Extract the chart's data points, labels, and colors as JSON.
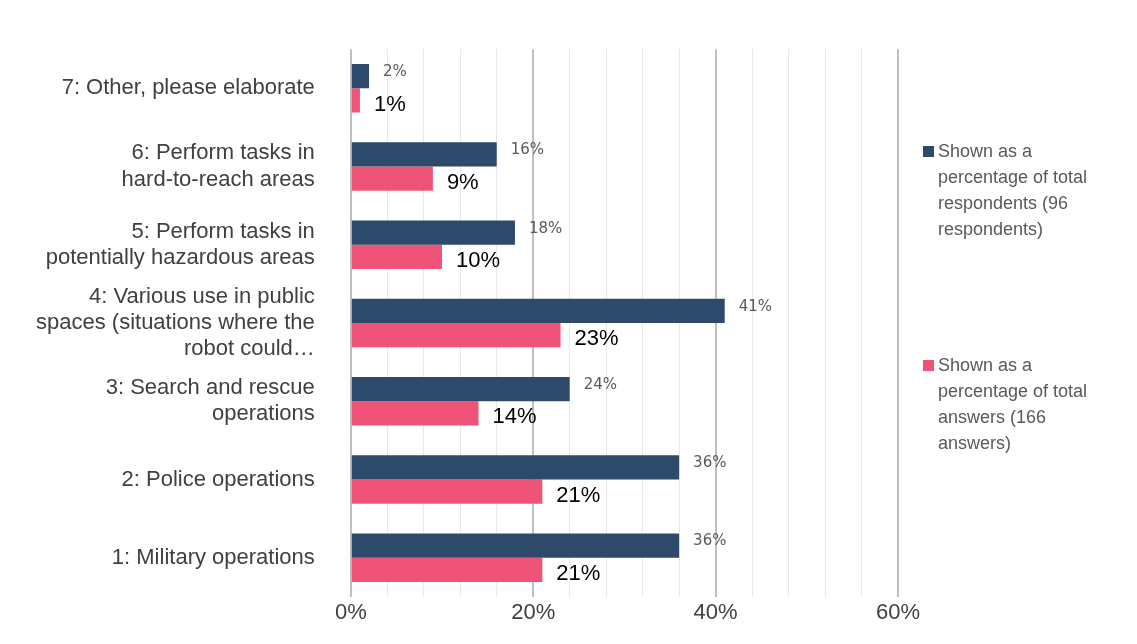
{
  "chart_data": {
    "type": "bar",
    "orientation": "horizontal",
    "categories": [
      "7: Other, please elaborate",
      "6: Perform tasks in hard-to-reach areas",
      "5: Perform tasks in potentially hazardous areas",
      "4: Various use in public spaces (situations where the robot could…",
      "3: Search and rescue operations",
      "2: Police operations",
      "1: Military operations"
    ],
    "series": [
      {
        "name": "Shown as a percentage of total respondents (96 respondents)",
        "color": "#2e4a6a",
        "values": [
          2,
          16,
          18,
          41,
          24,
          36,
          36
        ],
        "value_labels": [
          "2%",
          "16%",
          "18%",
          "41%",
          "24%",
          "36%",
          "36%"
        ]
      },
      {
        "name": "Shown as a percentage of total answers (166 answers)",
        "color": "#ef5478",
        "values": [
          1,
          9,
          10,
          23,
          14,
          21,
          21
        ],
        "value_labels": [
          "1%",
          "9%",
          "10%",
          "23%",
          "14%",
          "21%",
          "21%"
        ]
      }
    ],
    "xlim": [
      0,
      60
    ],
    "xticks": [
      {
        "value": 0,
        "label": "0%"
      },
      {
        "value": 4,
        "label": null
      },
      {
        "value": 8,
        "label": null
      },
      {
        "value": 12,
        "label": null
      },
      {
        "value": 16,
        "label": null
      },
      {
        "value": 20,
        "label": "20%"
      },
      {
        "value": 24,
        "label": null
      },
      {
        "value": 28,
        "label": null
      },
      {
        "value": 32,
        "label": null
      },
      {
        "value": 36,
        "label": null
      },
      {
        "value": 40,
        "label": "40%"
      },
      {
        "value": 44,
        "label": null
      },
      {
        "value": 48,
        "label": null
      },
      {
        "value": 52,
        "label": null
      },
      {
        "value": 56,
        "label": null
      },
      {
        "value": 60,
        "label": "60%"
      }
    ],
    "grid": "x",
    "legend": "right"
  }
}
